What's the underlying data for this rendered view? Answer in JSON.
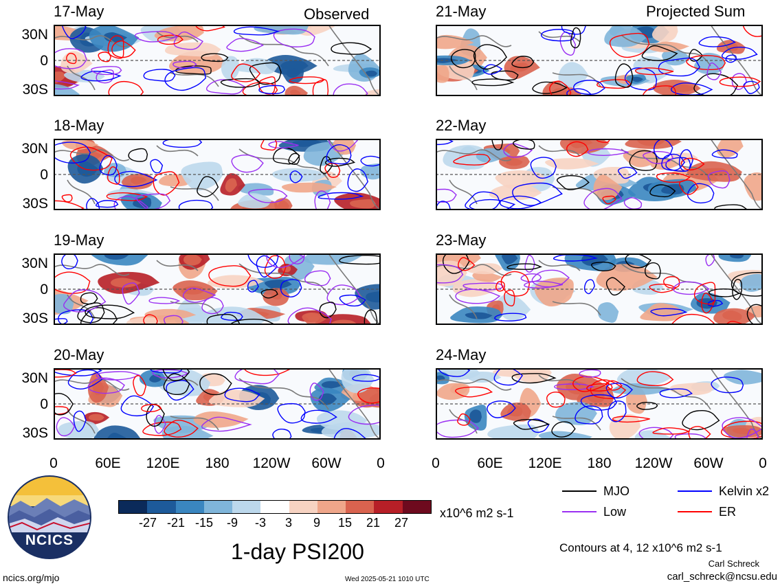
{
  "header": {
    "observed_label": "Observed",
    "projected_label": "Projected Sum"
  },
  "panels_left": [
    {
      "date": "17-May"
    },
    {
      "date": "18-May"
    },
    {
      "date": "19-May"
    },
    {
      "date": "20-May"
    }
  ],
  "panels_right": [
    {
      "date": "21-May"
    },
    {
      "date": "22-May"
    },
    {
      "date": "23-May"
    },
    {
      "date": "24-May"
    }
  ],
  "lat_labels": [
    "30N",
    "0",
    "30S"
  ],
  "lon_labels": [
    "0",
    "60E",
    "120E",
    "180",
    "120W",
    "60W",
    "0"
  ],
  "colorbar": {
    "colors": [
      "#0b2a5a",
      "#1d5a9a",
      "#3a86c0",
      "#7fb5da",
      "#bcd8ec",
      "#ffffff",
      "#f7d3c2",
      "#efa68a",
      "#d9634f",
      "#b71f27",
      "#6e0a1e"
    ],
    "labels": [
      "-27",
      "-21",
      "-15",
      "-9",
      "-3",
      "3",
      "9",
      "15",
      "21",
      "27"
    ],
    "units": "x10^6 m2 s-1"
  },
  "legend": {
    "items": [
      {
        "label": "MJO",
        "color": "#000000"
      },
      {
        "label": "Kelvin x2",
        "color": "#0000ff"
      },
      {
        "label": "Low",
        "color": "#9a2ef2"
      },
      {
        "label": "ER",
        "color": "#ff0000"
      }
    ]
  },
  "footer": {
    "main_title": "1-day PSI200",
    "contours_note": "Contours at 4, 12 x10^6 m2 s-1",
    "author": "Carl Schreck",
    "email": "carl_schreck@ncsu.edu",
    "site": "ncics.org/mjo",
    "timestamp": "Wed 2025-05-21 1010 UTC",
    "logo_text": "NCICS"
  }
}
